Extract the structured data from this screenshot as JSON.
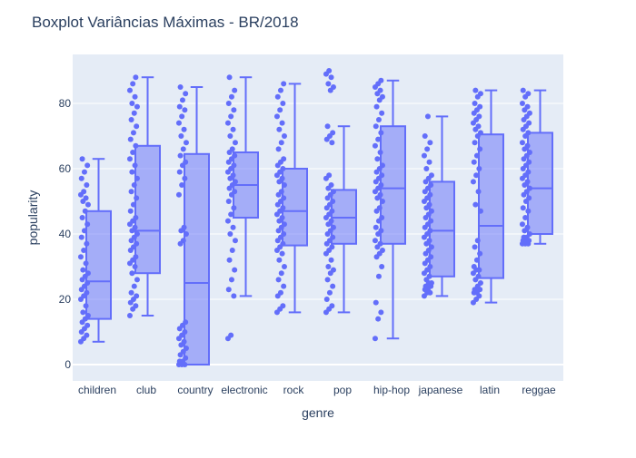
{
  "chart_data": {
    "type": "box",
    "title": "Boxplot Variâncias Máximas - BR/2018",
    "xlabel": "genre",
    "ylabel": "popularity",
    "ylim": [
      -5,
      95
    ],
    "yticks": [
      0,
      20,
      40,
      60,
      80
    ],
    "grid": true,
    "points": "all",
    "colors": {
      "plot_bg": "#e5ecf6",
      "box_line": "#636efa",
      "box_fill": "rgba(99,110,250,0.5)",
      "grid": "#ffffff",
      "text": "#2a3f5f"
    },
    "categories": [
      "children",
      "club",
      "country",
      "electronic",
      "rock",
      "pop",
      "hip-hop",
      "japanese",
      "latin",
      "reggae"
    ],
    "boxes": [
      {
        "category": "children",
        "min": 7,
        "q1": 14,
        "median": 25.5,
        "q3": 47,
        "max": 63,
        "points": [
          7,
          8,
          9,
          10,
          11,
          12,
          13,
          14,
          15,
          16,
          18,
          20,
          21,
          22,
          23,
          24,
          25,
          26,
          27,
          28,
          29,
          31,
          33,
          35,
          37,
          39,
          41,
          43,
          45,
          47,
          49,
          50,
          51,
          52,
          53,
          55,
          57,
          59,
          61,
          63
        ]
      },
      {
        "category": "club",
        "min": 15,
        "q1": 28,
        "median": 41,
        "q3": 67,
        "max": 88,
        "points": [
          15,
          17,
          18,
          19,
          20,
          21,
          22,
          24,
          26,
          28,
          30,
          31,
          32,
          33,
          35,
          36,
          37,
          38,
          39,
          40,
          41,
          42,
          43,
          44,
          45,
          47,
          49,
          51,
          53,
          55,
          57,
          59,
          61,
          63,
          65,
          67,
          69,
          71,
          73,
          75,
          77,
          79,
          80,
          82,
          84,
          86,
          88
        ]
      },
      {
        "category": "country",
        "min": 0,
        "q1": 0,
        "median": 25,
        "q3": 64.5,
        "max": 85,
        "points": [
          0,
          0,
          0,
          1,
          1,
          2,
          3,
          4,
          5,
          6,
          7,
          8,
          9,
          10,
          11,
          12,
          13,
          37,
          38,
          40,
          41,
          42,
          52,
          55,
          57,
          59,
          61,
          62,
          64,
          66,
          68,
          70,
          72,
          74,
          76,
          78,
          79,
          81,
          83,
          85
        ]
      },
      {
        "category": "electronic",
        "min": 21,
        "q1": 45,
        "median": 55,
        "q3": 65,
        "max": 88,
        "points": [
          8,
          9,
          21,
          23,
          26,
          29,
          32,
          35,
          38,
          40,
          42,
          44,
          46,
          48,
          50,
          52,
          53,
          54,
          55,
          56,
          57,
          58,
          59,
          60,
          61,
          62,
          63,
          64,
          65,
          66,
          68,
          70,
          72,
          74,
          76,
          78,
          80,
          82,
          84,
          88
        ]
      },
      {
        "category": "rock",
        "min": 16,
        "q1": 36.5,
        "median": 47,
        "q3": 60,
        "max": 86,
        "points": [
          16,
          17,
          18,
          21,
          22,
          24,
          26,
          28,
          30,
          32,
          34,
          35,
          36,
          37,
          38,
          39,
          40,
          41,
          42,
          43,
          44,
          45,
          46,
          47,
          48,
          49,
          50,
          51,
          52,
          53,
          55,
          56,
          57,
          58,
          59,
          60,
          61,
          62,
          63,
          66,
          68,
          70,
          72,
          74,
          76,
          78,
          80,
          82,
          84,
          86
        ]
      },
      {
        "category": "pop",
        "min": 16,
        "q1": 37,
        "median": 45,
        "q3": 53.5,
        "max": 73,
        "points": [
          16,
          17,
          18,
          20,
          22,
          24,
          26,
          28,
          29,
          30,
          32,
          34,
          35,
          36,
          37,
          38,
          39,
          40,
          41,
          42,
          43,
          44,
          45,
          46,
          47,
          48,
          49,
          50,
          51,
          52,
          53,
          54,
          55,
          57,
          58,
          68,
          69,
          70,
          71,
          73,
          84,
          85,
          86,
          88,
          89,
          90
        ]
      },
      {
        "category": "hip-hop",
        "min": 8,
        "q1": 37,
        "median": 54,
        "q3": 73,
        "max": 87,
        "points": [
          8,
          14,
          16,
          19,
          27,
          30,
          33,
          34,
          35,
          36,
          37,
          38,
          40,
          41,
          42,
          44,
          45,
          47,
          48,
          50,
          51,
          52,
          53,
          54,
          55,
          56,
          57,
          58,
          59,
          60,
          61,
          63,
          65,
          67,
          69,
          71,
          73,
          75,
          77,
          79,
          81,
          82,
          83,
          84,
          85,
          86,
          87
        ]
      },
      {
        "category": "japanese",
        "min": 21,
        "q1": 27,
        "median": 41,
        "q3": 56,
        "max": 76,
        "points": [
          21,
          22,
          22,
          23,
          23,
          24,
          24,
          25,
          25,
          26,
          27,
          28,
          29,
          30,
          31,
          32,
          33,
          34,
          35,
          36,
          37,
          38,
          39,
          40,
          41,
          42,
          43,
          44,
          45,
          46,
          47,
          48,
          49,
          50,
          51,
          52,
          53,
          54,
          55,
          56,
          57,
          58,
          60,
          62,
          64,
          66,
          68,
          70,
          76
        ]
      },
      {
        "category": "latin",
        "min": 19,
        "q1": 26.5,
        "median": 42.5,
        "q3": 70.5,
        "max": 84,
        "points": [
          19,
          20,
          21,
          22,
          22,
          23,
          23,
          24,
          25,
          26,
          27,
          28,
          29,
          29,
          30,
          32,
          34,
          36,
          38,
          47,
          49,
          53,
          56,
          58,
          60,
          62,
          64,
          66,
          68,
          70,
          71,
          72,
          73,
          74,
          75,
          76,
          77,
          78,
          79,
          80,
          82,
          83,
          84
        ]
      },
      {
        "category": "reggae",
        "min": 37,
        "q1": 40,
        "median": 54,
        "q3": 71,
        "max": 84,
        "points": [
          37,
          37,
          37,
          38,
          38,
          38,
          39,
          39,
          40,
          41,
          42,
          43,
          45,
          47,
          48,
          50,
          51,
          52,
          53,
          54,
          55,
          56,
          57,
          58,
          59,
          60,
          61,
          62,
          63,
          64,
          65,
          66,
          67,
          68,
          70,
          71,
          72,
          73,
          74,
          75,
          76,
          77,
          78,
          79,
          80,
          82,
          83,
          84
        ]
      }
    ]
  }
}
